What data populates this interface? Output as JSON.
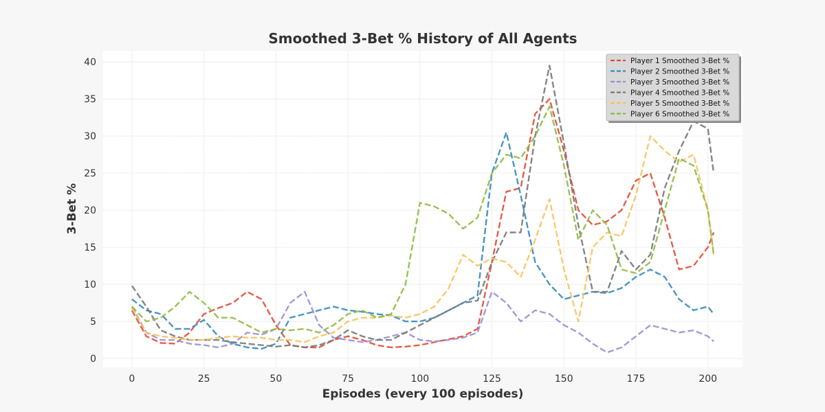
{
  "chart_data": {
    "type": "line",
    "title": "Smoothed 3-Bet % History of All Agents",
    "xlabel": "Episodes (every 100 episodes)",
    "ylabel": "3-Bet %",
    "xlim": [
      -10,
      212
    ],
    "ylim": [
      -1.2,
      41.5
    ],
    "xticks": [
      0,
      25,
      50,
      75,
      100,
      125,
      150,
      175,
      200
    ],
    "yticks": [
      0,
      5,
      10,
      15,
      20,
      25,
      30,
      35,
      40
    ],
    "grid": true,
    "legend_position": "top-right",
    "x": [
      0,
      5,
      10,
      15,
      20,
      25,
      30,
      35,
      40,
      45,
      50,
      55,
      60,
      65,
      70,
      75,
      80,
      85,
      90,
      95,
      100,
      105,
      110,
      115,
      120,
      125,
      130,
      135,
      140,
      145,
      150,
      155,
      160,
      165,
      170,
      175,
      180,
      185,
      190,
      195,
      200,
      202
    ],
    "series": [
      {
        "name": "Player 1 Smoothed 3-Bet %",
        "color": "#E24A33",
        "values": [
          6.5,
          3.0,
          2.1,
          2.0,
          3.5,
          6.0,
          6.8,
          7.5,
          9.0,
          8.0,
          4.5,
          1.8,
          1.5,
          1.5,
          2.5,
          3.0,
          2.5,
          1.8,
          1.5,
          1.6,
          1.8,
          2.2,
          2.6,
          3.0,
          4.0,
          13.0,
          22.5,
          23.0,
          33.0,
          35.0,
          28.0,
          20.0,
          18.0,
          18.5,
          20.0,
          24.0,
          25.0,
          19.0,
          12.0,
          12.5,
          15.0,
          17.0
        ]
      },
      {
        "name": "Player 2 Smoothed 3-Bet %",
        "color": "#348ABD",
        "values": [
          8.0,
          6.5,
          6.0,
          4.0,
          4.0,
          5.2,
          3.0,
          2.0,
          1.5,
          1.3,
          2.0,
          5.5,
          6.0,
          6.5,
          7.0,
          6.5,
          6.3,
          6.0,
          5.8,
          5.0,
          5.0,
          5.5,
          6.5,
          7.5,
          8.5,
          25.0,
          30.5,
          22.0,
          13.0,
          10.0,
          8.0,
          8.5,
          9.0,
          8.8,
          9.5,
          11.0,
          12.0,
          11.0,
          8.0,
          6.5,
          7.0,
          6.0
        ]
      },
      {
        "name": "Player 3 Smoothed 3-Bet %",
        "color": "#988ED5",
        "values": [
          7.0,
          3.5,
          2.5,
          2.5,
          2.0,
          1.8,
          1.5,
          2.0,
          3.5,
          3.2,
          4.0,
          7.5,
          9.0,
          4.5,
          2.8,
          2.5,
          2.2,
          2.5,
          3.0,
          3.5,
          2.5,
          2.3,
          2.5,
          2.8,
          3.5,
          9.0,
          7.5,
          5.0,
          6.5,
          6.0,
          4.5,
          3.5,
          2.0,
          0.8,
          1.5,
          3.0,
          4.5,
          4.0,
          3.5,
          3.8,
          3.0,
          2.3
        ]
      },
      {
        "name": "Player 4 Smoothed 3-Bet %",
        "color": "#777777",
        "values": [
          9.8,
          7.0,
          3.8,
          3.0,
          2.5,
          2.5,
          2.5,
          2.2,
          2.0,
          1.8,
          1.6,
          1.8,
          1.5,
          1.8,
          2.5,
          3.8,
          3.0,
          2.5,
          2.5,
          3.5,
          4.5,
          5.5,
          6.5,
          7.5,
          7.8,
          13.0,
          17.0,
          17.0,
          30.0,
          39.5,
          29.0,
          18.0,
          9.0,
          9.0,
          14.5,
          12.0,
          14.0,
          23.0,
          28.0,
          32.0,
          31.0,
          25.0
        ]
      },
      {
        "name": "Player 5 Smoothed 3-Bet %",
        "color": "#FBC15E",
        "values": [
          6.8,
          3.5,
          3.0,
          2.8,
          2.5,
          2.5,
          2.8,
          3.0,
          2.8,
          2.8,
          2.5,
          2.5,
          2.2,
          3.0,
          3.5,
          5.0,
          5.5,
          5.5,
          5.8,
          5.5,
          6.0,
          7.0,
          9.5,
          14.0,
          12.5,
          13.5,
          13.0,
          11.0,
          16.0,
          21.5,
          12.0,
          5.0,
          15.0,
          17.0,
          16.5,
          22.0,
          30.0,
          28.0,
          26.5,
          27.5,
          20.0,
          14.0
        ]
      },
      {
        "name": "Player 6 Smoothed 3-Bet %",
        "color": "#8EBA42",
        "values": [
          7.0,
          5.0,
          5.5,
          7.0,
          9.0,
          7.5,
          5.5,
          5.5,
          4.5,
          3.5,
          4.0,
          3.8,
          4.0,
          3.5,
          4.5,
          6.0,
          6.5,
          5.5,
          6.0,
          10.0,
          21.0,
          20.5,
          19.5,
          17.5,
          19.0,
          25.0,
          27.5,
          27.0,
          30.0,
          34.0,
          26.0,
          16.0,
          20.0,
          18.0,
          12.0,
          11.5,
          13.0,
          20.0,
          27.0,
          26.0,
          20.0,
          14.0
        ]
      }
    ]
  }
}
